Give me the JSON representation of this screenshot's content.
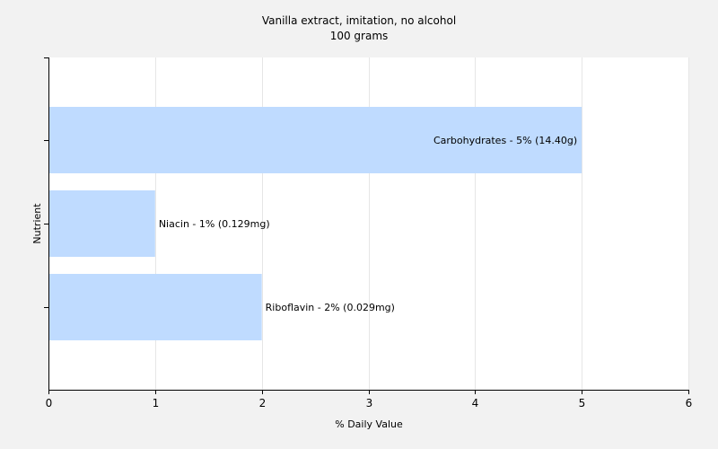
{
  "chart_data": {
    "type": "bar",
    "orientation": "horizontal",
    "title": "Vanilla extract, imitation, no alcohol",
    "subtitle": "100 grams",
    "xlabel": "% Daily Value",
    "ylabel": "Nutrient",
    "xlim": [
      0,
      6
    ],
    "xticks": [
      "0",
      "1",
      "2",
      "3",
      "4",
      "5",
      "6"
    ],
    "grid": true,
    "bar_color": "#bfdbff",
    "categories": [
      "Carbohydrates",
      "Niacin",
      "Riboflavin"
    ],
    "values": [
      5,
      1,
      2
    ],
    "data_labels": [
      "Carbohydrates - 5% (14.40g)",
      "Niacin - 1% (0.129mg)",
      "Riboflavin - 2% (0.029mg)"
    ]
  }
}
